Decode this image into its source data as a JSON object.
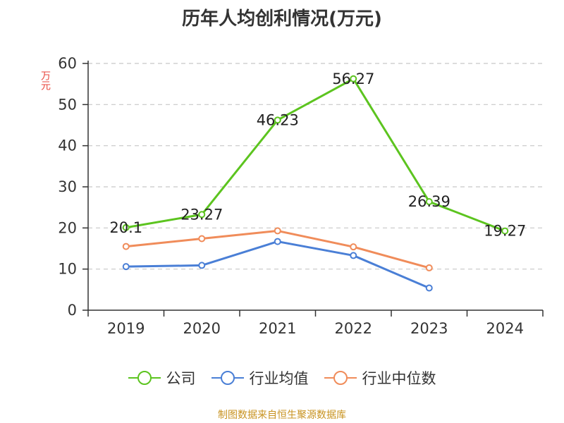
{
  "title": "历年人均创利情况(万元)",
  "source_note": "制图数据来自恒生聚源数据库",
  "colors": {
    "company": "#5cc41f",
    "industry_avg": "#4a7fd6",
    "industry_median": "#f08c5a",
    "axis": "#333333",
    "grid": "#c8c8c8",
    "unit": "#e8463c",
    "source": "#c89320"
  },
  "chart_data": {
    "type": "line",
    "title": "历年人均创利情况(万元)",
    "ylabel": "万元",
    "xlabel": "",
    "ylim": [
      0,
      60
    ],
    "yticks": [
      0,
      10,
      20,
      30,
      40,
      50,
      60
    ],
    "ytick_labels": [
      "0",
      "10",
      "20",
      "30",
      "40",
      "50",
      "60"
    ],
    "categories": [
      "2019",
      "2020",
      "2021",
      "2022",
      "2023",
      "2024"
    ],
    "grid": true,
    "legend_position": "bottom",
    "series": [
      {
        "key": "company",
        "name": "公司",
        "values": [
          20.1,
          23.27,
          46.23,
          56.27,
          26.39,
          19.27
        ],
        "labels": [
          "20.1",
          "23.27",
          "46.23",
          "56.27",
          "26.39",
          "19.27"
        ]
      },
      {
        "key": "industry_avg",
        "name": "行业均值",
        "values": [
          10.6,
          10.9,
          16.7,
          13.3,
          5.4,
          null
        ]
      },
      {
        "key": "industry_median",
        "name": "行业中位数",
        "values": [
          15.5,
          17.4,
          19.3,
          15.4,
          10.3,
          null
        ]
      }
    ]
  }
}
